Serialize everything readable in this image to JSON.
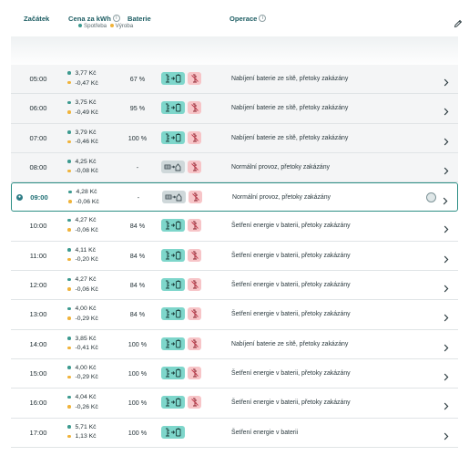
{
  "header": {
    "start": "Začátek",
    "price": "Cena za kWh",
    "price_sub_consumption": "Spotřeba",
    "price_sub_production": "Výroba",
    "battery": "Baterie",
    "operation": "Operace"
  },
  "colors": {
    "accent": "#2d8f86",
    "consumption_dot": "#3c9a8f",
    "production_dot": "#f0b33a",
    "charge_badge": "#7ed6cb",
    "normal_badge": "#cfd8da",
    "block_badge": "#f7c5c8"
  },
  "rows": [
    {
      "start": "05:00",
      "buy": "3,77 Kč",
      "sell": "-0,47 Kč",
      "battery": "67 %",
      "mode": "charge",
      "op": "Nabíjení baterie ze sítě, přetoky zakázány",
      "state": "past",
      "blocked": true
    },
    {
      "start": "06:00",
      "buy": "3,75 Kč",
      "sell": "-0,49 Kč",
      "battery": "95 %",
      "mode": "charge",
      "op": "Nabíjení baterie ze sítě, přetoky zakázány",
      "state": "past",
      "blocked": true
    },
    {
      "start": "07:00",
      "buy": "3,79 Kč",
      "sell": "-0,46 Kč",
      "battery": "100 %",
      "mode": "charge",
      "op": "Nabíjení baterie ze sítě, přetoky zakázány",
      "state": "past",
      "blocked": true
    },
    {
      "start": "08:00",
      "buy": "4,25 Kč",
      "sell": "-0,08 Kč",
      "battery": "-",
      "mode": "normal",
      "op": "Normální provoz, přetoky zakázány",
      "state": "past",
      "blocked": true
    },
    {
      "start": "09:00",
      "buy": "4,28 Kč",
      "sell": "-0,06 Kč",
      "battery": "-",
      "mode": "normal",
      "op": "Normální provoz, přetoky zakázány",
      "state": "current",
      "blocked": true
    },
    {
      "start": "10:00",
      "buy": "4,27 Kč",
      "sell": "-0,06 Kč",
      "battery": "84 %",
      "mode": "charge",
      "op": "Šetření energie v baterii, přetoky zakázány",
      "state": "future",
      "blocked": true
    },
    {
      "start": "11:00",
      "buy": "4,11 Kč",
      "sell": "-0,20 Kč",
      "battery": "84 %",
      "mode": "charge",
      "op": "Šetření energie v baterii, přetoky zakázány",
      "state": "future",
      "blocked": true
    },
    {
      "start": "12:00",
      "buy": "4,27 Kč",
      "sell": "-0,06 Kč",
      "battery": "84 %",
      "mode": "charge",
      "op": "Šetření energie v baterii, přetoky zakázány",
      "state": "future",
      "blocked": true
    },
    {
      "start": "13:00",
      "buy": "4,00 Kč",
      "sell": "-0,29 Kč",
      "battery": "84 %",
      "mode": "charge",
      "op": "Šetření energie v baterii, přetoky zakázány",
      "state": "future",
      "blocked": true
    },
    {
      "start": "14:00",
      "buy": "3,85 Kč",
      "sell": "-0,41 Kč",
      "battery": "100 %",
      "mode": "charge",
      "op": "Nabíjení baterie ze sítě, přetoky zakázány",
      "state": "future",
      "blocked": true
    },
    {
      "start": "15:00",
      "buy": "4,00 Kč",
      "sell": "-0,29 Kč",
      "battery": "100 %",
      "mode": "charge",
      "op": "Šetření energie v baterii, přetoky zakázány",
      "state": "future",
      "blocked": true
    },
    {
      "start": "16:00",
      "buy": "4,04 Kč",
      "sell": "-0,26 Kč",
      "battery": "100 %",
      "mode": "charge",
      "op": "Šetření energie v baterii, přetoky zakázány",
      "state": "future",
      "blocked": true
    },
    {
      "start": "17:00",
      "buy": "5,71 Kč",
      "sell": "1,13 Kč",
      "battery": "100 %",
      "mode": "charge",
      "op": "Šetření energie v baterii",
      "state": "future",
      "blocked": false
    }
  ]
}
